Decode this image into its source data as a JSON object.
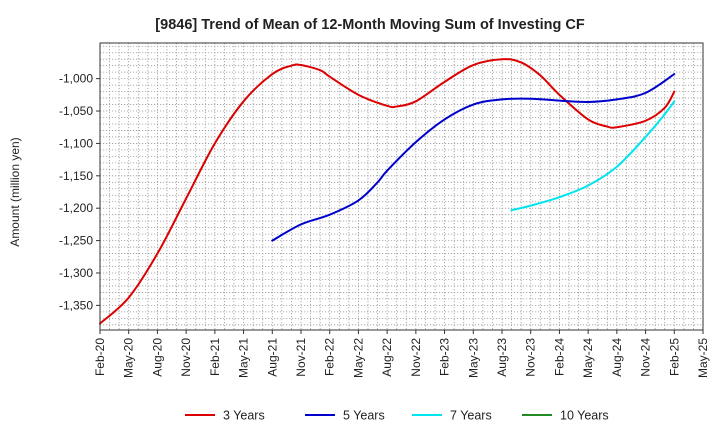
{
  "chart_data": {
    "type": "line",
    "title": "[9846]  Trend of Mean of 12-Month Moving Sum of Investing CF",
    "xlabel": "",
    "ylabel": "Amount (million yen)",
    "ylim": [
      -1388,
      -945
    ],
    "y_ticks": [
      -1000,
      -1050,
      -1100,
      -1150,
      -1200,
      -1250,
      -1300,
      -1350
    ],
    "y_tick_labels": [
      "-1,000",
      "-1,050",
      "-1,100",
      "-1,150",
      "-1,200",
      "-1,250",
      "-1,300",
      "-1,350"
    ],
    "x_range_months": [
      0,
      63
    ],
    "x_ticks": [
      {
        "m": 0,
        "label": "Feb-20"
      },
      {
        "m": 3,
        "label": "May-20"
      },
      {
        "m": 6,
        "label": "Aug-20"
      },
      {
        "m": 9,
        "label": "Nov-20"
      },
      {
        "m": 12,
        "label": "Feb-21"
      },
      {
        "m": 15,
        "label": "May-21"
      },
      {
        "m": 18,
        "label": "Aug-21"
      },
      {
        "m": 21,
        "label": "Nov-21"
      },
      {
        "m": 24,
        "label": "Feb-22"
      },
      {
        "m": 27,
        "label": "May-22"
      },
      {
        "m": 30,
        "label": "Aug-22"
      },
      {
        "m": 33,
        "label": "Nov-22"
      },
      {
        "m": 36,
        "label": "Feb-23"
      },
      {
        "m": 39,
        "label": "May-23"
      },
      {
        "m": 42,
        "label": "Aug-23"
      },
      {
        "m": 45,
        "label": "Nov-23"
      },
      {
        "m": 48,
        "label": "Feb-24"
      },
      {
        "m": 51,
        "label": "May-24"
      },
      {
        "m": 54,
        "label": "Aug-24"
      },
      {
        "m": 57,
        "label": "Nov-24"
      },
      {
        "m": 60,
        "label": "Feb-25"
      },
      {
        "m": 63,
        "label": "May-25"
      }
    ],
    "grid": true,
    "legend_position": "bottom",
    "series": [
      {
        "name": "3 Years",
        "color": "#dd0000",
        "points": [
          [
            0,
            -1378
          ],
          [
            3,
            -1338
          ],
          [
            6,
            -1270
          ],
          [
            9,
            -1185
          ],
          [
            12,
            -1100
          ],
          [
            15,
            -1035
          ],
          [
            18,
            -993
          ],
          [
            20,
            -980
          ],
          [
            21,
            -979
          ],
          [
            23,
            -987
          ],
          [
            24,
            -997
          ],
          [
            27,
            -1025
          ],
          [
            30,
            -1042
          ],
          [
            31,
            -1043
          ],
          [
            33,
            -1035
          ],
          [
            36,
            -1005
          ],
          [
            39,
            -979
          ],
          [
            42,
            -970
          ],
          [
            44,
            -975
          ],
          [
            46,
            -995
          ],
          [
            48,
            -1025
          ],
          [
            51,
            -1063
          ],
          [
            53,
            -1074
          ],
          [
            54,
            -1075
          ],
          [
            57,
            -1065
          ],
          [
            59,
            -1045
          ],
          [
            60,
            -1020
          ]
        ]
      },
      {
        "name": "5 Years",
        "color": "#0000cc",
        "points": [
          [
            18,
            -1250
          ],
          [
            21,
            -1225
          ],
          [
            24,
            -1210
          ],
          [
            27,
            -1188
          ],
          [
            29,
            -1160
          ],
          [
            30,
            -1142
          ],
          [
            33,
            -1098
          ],
          [
            36,
            -1063
          ],
          [
            39,
            -1040
          ],
          [
            42,
            -1032
          ],
          [
            45,
            -1031
          ],
          [
            48,
            -1034
          ],
          [
            51,
            -1036
          ],
          [
            54,
            -1032
          ],
          [
            57,
            -1022
          ],
          [
            60,
            -993
          ]
        ]
      },
      {
        "name": "7 Years",
        "color": "#00e5ee",
        "points": [
          [
            43,
            -1203
          ],
          [
            45,
            -1196
          ],
          [
            48,
            -1183
          ],
          [
            51,
            -1165
          ],
          [
            54,
            -1136
          ],
          [
            57,
            -1090
          ],
          [
            59,
            -1055
          ],
          [
            60,
            -1035
          ]
        ]
      },
      {
        "name": "10 Years",
        "color": "#228b22",
        "points": []
      }
    ]
  }
}
